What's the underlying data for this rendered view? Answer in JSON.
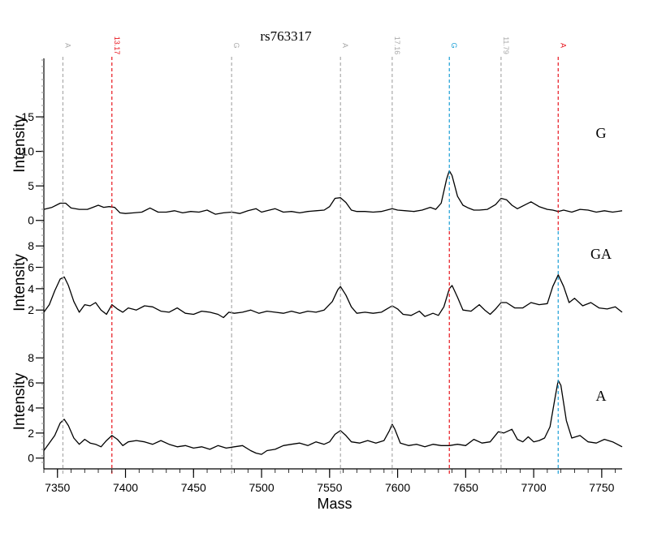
{
  "chart_data": {
    "type": "line",
    "title": "rs763317",
    "xlabel": "Mass",
    "ylabel": "Intensity",
    "xlim": [
      7340,
      7765
    ],
    "x_ticks": [
      7350,
      7400,
      7450,
      7500,
      7550,
      7600,
      7650,
      7700,
      7750
    ],
    "markers": [
      {
        "x": 7354,
        "label": "A",
        "color": "#aaaaaa"
      },
      {
        "x": 7390,
        "label": "13.17",
        "color": "#e8141c"
      },
      {
        "x": 7478,
        "label": "G",
        "color": "#aaaaaa"
      },
      {
        "x": 7558,
        "label": "A",
        "color": "#aaaaaa"
      },
      {
        "x": 7596,
        "label": "17.16",
        "color": "#aaaaaa"
      },
      {
        "x": 7638,
        "label": "G",
        "color": "#1a9fd6"
      },
      {
        "x": 7676,
        "label": "11.79",
        "color": "#aaaaaa"
      },
      {
        "x": 7718,
        "label": "A",
        "color": "#e8141c"
      }
    ],
    "panels": [
      {
        "name": "G",
        "ylim": [
          -0.5,
          19
        ],
        "yticks": [
          0,
          5,
          10,
          15
        ],
        "marker_colors": {
          "7638": "#1a9fd6",
          "7718": "#e8141c",
          "7390": "#e8141c"
        },
        "series": {
          "x": [
            7340,
            7346,
            7352,
            7356,
            7360,
            7366,
            7372,
            7376,
            7380,
            7384,
            7388,
            7392,
            7396,
            7400,
            7406,
            7412,
            7418,
            7424,
            7430,
            7436,
            7442,
            7448,
            7454,
            7460,
            7466,
            7472,
            7478,
            7484,
            7490,
            7496,
            7500,
            7504,
            7510,
            7516,
            7522,
            7528,
            7534,
            7540,
            7546,
            7550,
            7554,
            7558,
            7562,
            7566,
            7570,
            7576,
            7582,
            7588,
            7592,
            7596,
            7600,
            7606,
            7612,
            7618,
            7624,
            7628,
            7632,
            7636,
            7638,
            7640,
            7644,
            7648,
            7652,
            7656,
            7660,
            7666,
            7672,
            7676,
            7680,
            7684,
            7688,
            7694,
            7698,
            7704,
            7710,
            7714,
            7718,
            7722,
            7728,
            7734,
            7740,
            7746,
            7752,
            7758,
            7765
          ],
          "y": [
            1.6,
            1.9,
            2.5,
            2.5,
            1.8,
            1.6,
            1.6,
            1.9,
            2.2,
            1.9,
            2.0,
            1.9,
            1.1,
            1.0,
            1.1,
            1.2,
            1.8,
            1.2,
            1.2,
            1.4,
            1.1,
            1.3,
            1.2,
            1.5,
            0.9,
            1.1,
            1.2,
            1.0,
            1.4,
            1.7,
            1.2,
            1.4,
            1.7,
            1.2,
            1.3,
            1.1,
            1.3,
            1.4,
            1.5,
            2.0,
            3.2,
            3.3,
            2.6,
            1.5,
            1.3,
            1.3,
            1.2,
            1.3,
            1.5,
            1.7,
            1.5,
            1.4,
            1.3,
            1.5,
            1.9,
            1.6,
            2.5,
            6.0,
            7.2,
            6.5,
            3.5,
            2.2,
            1.8,
            1.5,
            1.5,
            1.6,
            2.3,
            3.2,
            3.0,
            2.2,
            1.7,
            2.3,
            2.7,
            2.0,
            1.6,
            1.5,
            1.3,
            1.5,
            1.2,
            1.6,
            1.5,
            1.2,
            1.4,
            1.2,
            1.4
          ]
        }
      },
      {
        "name": "GA",
        "ylim": [
          0.5,
          9
        ],
        "yticks": [
          2,
          4,
          6,
          8
        ],
        "marker_colors": {
          "7638": "#e8141c",
          "7718": "#1a9fd6",
          "7390": "#e8141c"
        },
        "series": {
          "x": [
            7340,
            7344,
            7348,
            7352,
            7355,
            7358,
            7362,
            7366,
            7370,
            7374,
            7378,
            7382,
            7386,
            7390,
            7394,
            7398,
            7402,
            7408,
            7414,
            7420,
            7426,
            7432,
            7438,
            7444,
            7450,
            7456,
            7462,
            7468,
            7472,
            7476,
            7480,
            7486,
            7492,
            7498,
            7504,
            7510,
            7516,
            7522,
            7528,
            7534,
            7540,
            7546,
            7552,
            7556,
            7558,
            7562,
            7566,
            7570,
            7576,
            7582,
            7588,
            7592,
            7596,
            7600,
            7604,
            7610,
            7616,
            7620,
            7626,
            7630,
            7634,
            7638,
            7640,
            7644,
            7648,
            7654,
            7660,
            7664,
            7668,
            7672,
            7676,
            7680,
            7686,
            7692,
            7698,
            7704,
            7710,
            7714,
            7718,
            7722,
            7726,
            7730,
            7736,
            7742,
            7748,
            7754,
            7760,
            7765
          ],
          "y": [
            1.8,
            2.5,
            3.8,
            4.9,
            5.1,
            4.3,
            2.8,
            1.8,
            2.5,
            2.4,
            2.7,
            2.0,
            1.6,
            2.5,
            2.1,
            1.8,
            2.2,
            2.0,
            2.4,
            2.3,
            1.9,
            1.8,
            2.2,
            1.7,
            1.6,
            1.9,
            1.8,
            1.6,
            1.3,
            1.8,
            1.7,
            1.8,
            2.0,
            1.7,
            1.9,
            1.8,
            1.7,
            1.9,
            1.7,
            1.9,
            1.8,
            2.0,
            2.8,
            3.9,
            4.2,
            3.4,
            2.3,
            1.7,
            1.8,
            1.7,
            1.8,
            2.1,
            2.4,
            2.1,
            1.6,
            1.5,
            1.9,
            1.4,
            1.7,
            1.5,
            2.3,
            4.0,
            4.3,
            3.2,
            2.0,
            1.9,
            2.5,
            2.0,
            1.6,
            2.1,
            2.7,
            2.7,
            2.2,
            2.2,
            2.7,
            2.5,
            2.6,
            4.2,
            5.3,
            4.2,
            2.7,
            3.1,
            2.4,
            2.7,
            2.2,
            2.1,
            2.3,
            1.8
          ]
        }
      },
      {
        "name": "A",
        "ylim": [
          -0.6,
          9.5
        ],
        "yticks": [
          0,
          2,
          4,
          6,
          8
        ],
        "marker_colors": {
          "7638": "#e8141c",
          "7718": "#1a9fd6",
          "7390": "#e8141c"
        },
        "series": {
          "x": [
            7340,
            7344,
            7348,
            7352,
            7355,
            7358,
            7362,
            7366,
            7370,
            7374,
            7378,
            7382,
            7386,
            7390,
            7394,
            7398,
            7402,
            7408,
            7414,
            7420,
            7426,
            7432,
            7438,
            7444,
            7450,
            7456,
            7462,
            7468,
            7474,
            7480,
            7486,
            7492,
            7496,
            7500,
            7504,
            7510,
            7516,
            7522,
            7528,
            7534,
            7540,
            7546,
            7550,
            7554,
            7558,
            7562,
            7566,
            7572,
            7578,
            7584,
            7590,
            7594,
            7596,
            7598,
            7602,
            7608,
            7614,
            7620,
            7626,
            7632,
            7638,
            7644,
            7650,
            7656,
            7662,
            7668,
            7674,
            7678,
            7684,
            7688,
            7692,
            7696,
            7700,
            7704,
            7708,
            7712,
            7716,
            7718,
            7720,
            7724,
            7728,
            7734,
            7740,
            7746,
            7752,
            7758,
            7765
          ],
          "y": [
            0.6,
            1.2,
            1.8,
            2.8,
            3.1,
            2.6,
            1.6,
            1.1,
            1.5,
            1.2,
            1.1,
            0.9,
            1.4,
            1.8,
            1.5,
            1.0,
            1.3,
            1.4,
            1.3,
            1.1,
            1.4,
            1.1,
            0.9,
            1.0,
            0.8,
            0.9,
            0.7,
            1.0,
            0.8,
            0.9,
            1.0,
            0.6,
            0.4,
            0.3,
            0.6,
            0.7,
            1.0,
            1.1,
            1.2,
            1.0,
            1.3,
            1.1,
            1.3,
            1.9,
            2.2,
            1.8,
            1.3,
            1.2,
            1.4,
            1.2,
            1.4,
            2.2,
            2.7,
            2.3,
            1.2,
            1.0,
            1.1,
            0.9,
            1.1,
            1.0,
            1.0,
            1.1,
            1.0,
            1.5,
            1.2,
            1.3,
            2.1,
            2.0,
            2.3,
            1.5,
            1.3,
            1.7,
            1.3,
            1.4,
            1.6,
            2.5,
            5.0,
            6.2,
            5.8,
            3.0,
            1.6,
            1.8,
            1.3,
            1.2,
            1.5,
            1.3,
            0.9
          ]
        }
      }
    ]
  }
}
